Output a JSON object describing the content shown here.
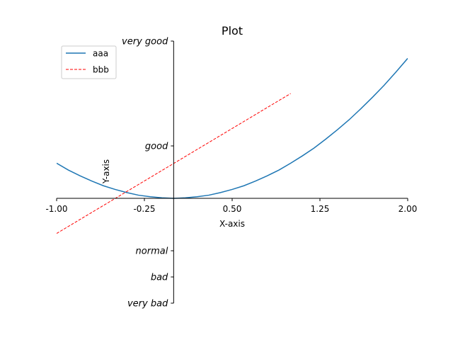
{
  "chart_data": {
    "type": "line",
    "title": "Plot",
    "xlabel": "X-axis",
    "ylabel": "Y-axis",
    "xlim": [
      -1.0,
      2.0
    ],
    "ylim": [
      -2.0,
      3.0
    ],
    "x_ticks": [
      {
        "value": -1.0,
        "label": "-1.00"
      },
      {
        "value": -0.25,
        "label": "-0.25"
      },
      {
        "value": 0.5,
        "label": "0.50"
      },
      {
        "value": 1.25,
        "label": "1.25"
      },
      {
        "value": 2.0,
        "label": "2.00"
      }
    ],
    "y_ticks": [
      {
        "value": -2.0,
        "label": "very bad"
      },
      {
        "value": -1.5,
        "label": "bad"
      },
      {
        "value": -1.0,
        "label": "normal"
      },
      {
        "value": 1.0,
        "label": "good"
      },
      {
        "value": 3.0,
        "label": "very good"
      }
    ],
    "grid": false,
    "legend_position": "top-left",
    "series": [
      {
        "name": "aaa",
        "color": "#1f77b4",
        "style": "solid",
        "x": [
          -1.0,
          -0.9,
          -0.8,
          -0.7,
          -0.6,
          -0.5,
          -0.4,
          -0.3,
          -0.2,
          -0.1,
          0.0,
          0.1,
          0.2,
          0.3,
          0.4,
          0.5,
          0.6,
          0.7,
          0.8,
          0.9,
          1.0,
          1.1,
          1.2,
          1.3,
          1.4,
          1.5,
          1.6,
          1.7,
          1.8,
          1.9,
          2.0
        ],
        "y": [
          0.67,
          0.54,
          0.43,
          0.33,
          0.24,
          0.17,
          0.11,
          0.06,
          0.03,
          0.01,
          0.0,
          0.01,
          0.03,
          0.06,
          0.11,
          0.17,
          0.24,
          0.33,
          0.43,
          0.54,
          0.67,
          0.81,
          0.96,
          1.13,
          1.31,
          1.5,
          1.71,
          1.93,
          2.16,
          2.41,
          2.67
        ]
      },
      {
        "name": "bbb",
        "color": "#ff0000",
        "style": "dashed",
        "x": [
          -1.0,
          1.0
        ],
        "y": [
          -0.67,
          2.0
        ]
      }
    ]
  }
}
